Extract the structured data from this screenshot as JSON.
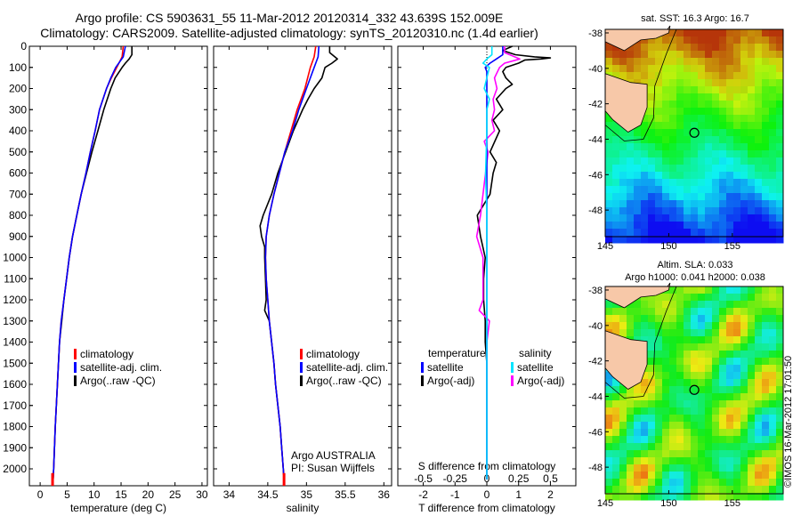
{
  "header": {
    "line1": "Argo profile: CS 5903631_55 11-Mar-2012 20120314_332 43.639S 152.009E",
    "line2": "Climatology: CARS2009. Satellite-adjusted climatology: synTS_20120310.nc (1.4d earlier)"
  },
  "colors": {
    "climatology": "#ff0000",
    "satellite": "#0000ff",
    "argo": "#000000",
    "sal_satellite": "#00e5ff",
    "sal_argo": "#ff00ff"
  },
  "chart_data": [
    {
      "id": "temperature",
      "type": "line",
      "xlabel": "temperature (deg C)",
      "xlim": [
        -2,
        31
      ],
      "xticks": [
        "0",
        "5",
        "10",
        "15",
        "20",
        "25",
        "30"
      ],
      "ylim": [
        0,
        2080
      ],
      "yticks": [
        "0",
        "100",
        "200",
        "300",
        "400",
        "500",
        "600",
        "700",
        "800",
        "900",
        "1000",
        "1100",
        "1200",
        "1300",
        "1400",
        "1500",
        "1600",
        "1700",
        "1800",
        "1900",
        "2000"
      ],
      "legend": [
        "climatology",
        "satellite-adj. clim.",
        "Argo(..raw -QC)"
      ],
      "series": [
        {
          "name": "climatology",
          "depth": [
            0,
            50,
            100,
            150,
            200,
            300,
            400,
            500,
            600,
            700,
            800,
            900,
            1000,
            1100,
            1200,
            1300,
            1400,
            1600,
            1800,
            2000,
            2050
          ],
          "values": [
            15.4,
            15.2,
            14.2,
            13.2,
            12.3,
            11.0,
            10.2,
            9.3,
            8.5,
            7.6,
            6.8,
            6.0,
            5.4,
            4.9,
            4.4,
            3.9,
            3.6,
            3.2,
            2.8,
            2.5,
            2.4
          ]
        },
        {
          "name": "satellite-adj. clim.",
          "depth": [
            0,
            50,
            100,
            150,
            200,
            300,
            400,
            500,
            600,
            700,
            800,
            900,
            1000,
            1100,
            1200,
            1300,
            1400,
            1600,
            1800,
            2000,
            2050
          ],
          "values": [
            15.8,
            15.4,
            14.0,
            13.1,
            12.3,
            11.0,
            10.2,
            9.3,
            8.5,
            7.6,
            6.8,
            6.0,
            5.4,
            4.9,
            4.4,
            3.9,
            3.6,
            3.2,
            2.8,
            2.5,
            2.4
          ]
        },
        {
          "name": "Argo(..raw -QC)",
          "depth": [
            0,
            40,
            60,
            80,
            100,
            150,
            200,
            300,
            400,
            500,
            600,
            700,
            800,
            900,
            1000,
            1100,
            1200,
            1300,
            1400,
            1600,
            1800,
            2000,
            2050
          ],
          "values": [
            17.0,
            17.0,
            16.5,
            15.8,
            15.2,
            13.9,
            13.1,
            11.8,
            10.7,
            9.6,
            8.6,
            7.6,
            6.8,
            6.0,
            5.4,
            4.9,
            4.4,
            4.0,
            3.6,
            3.2,
            2.8,
            2.5,
            2.4
          ]
        }
      ]
    },
    {
      "id": "salinity",
      "type": "line",
      "xlabel": "salinity",
      "xlim": [
        33.8,
        36.1
      ],
      "xticks": [
        "34",
        "34.5",
        "35",
        "35.5",
        "36"
      ],
      "ylim": [
        0,
        2080
      ],
      "legend": [
        "climatology",
        "satellite-adj. clim.",
        "Argo(..raw -QC)"
      ],
      "note": [
        "Argo AUSTRALIA",
        "PI: Susan Wijffels"
      ],
      "series": [
        {
          "name": "climatology",
          "depth": [
            0,
            50,
            100,
            200,
            300,
            400,
            500,
            600,
            700,
            800,
            900,
            1000,
            1100,
            1200,
            1300,
            1400,
            1500,
            1600,
            1700,
            1800,
            1900,
            2000,
            2050
          ],
          "values": [
            35.12,
            35.1,
            35.05,
            34.98,
            34.88,
            34.8,
            34.72,
            34.65,
            34.58,
            34.52,
            34.48,
            34.47,
            34.48,
            34.5,
            34.52,
            34.55,
            34.58,
            34.6,
            34.63,
            34.66,
            34.68,
            34.7,
            34.71
          ]
        },
        {
          "name": "satellite-adj. clim.",
          "depth": [
            0,
            50,
            100,
            200,
            300,
            400,
            500,
            600,
            700,
            800,
            900,
            1000,
            1100,
            1200,
            1300,
            1400,
            1500,
            1600,
            1700,
            1800,
            1900,
            2000,
            2050
          ],
          "values": [
            35.16,
            35.15,
            35.1,
            35.0,
            34.9,
            34.82,
            34.72,
            34.65,
            34.58,
            34.52,
            34.48,
            34.47,
            34.48,
            34.5,
            34.52,
            34.55,
            34.58,
            34.6,
            34.63,
            34.66,
            34.68,
            34.7,
            34.71
          ]
        },
        {
          "name": "Argo(..raw -QC)",
          "depth": [
            0,
            30,
            60,
            80,
            100,
            150,
            200,
            250,
            300,
            400,
            500,
            600,
            700,
            800,
            850,
            900,
            950,
            1000,
            1100,
            1200,
            1250,
            1300,
            1400,
            1500,
            1600,
            1700,
            1800,
            1900,
            2000,
            2050
          ],
          "values": [
            35.3,
            35.3,
            35.4,
            35.33,
            35.24,
            35.2,
            35.1,
            35.02,
            34.95,
            34.83,
            34.73,
            34.63,
            34.55,
            34.44,
            34.4,
            34.42,
            34.46,
            34.46,
            34.47,
            34.48,
            34.46,
            34.52,
            34.55,
            34.58,
            34.6,
            34.63,
            34.66,
            34.68,
            34.7,
            34.71
          ]
        }
      ]
    },
    {
      "id": "difference",
      "type": "line",
      "xlabel": "T difference from climatology",
      "xlabel_top": "S difference from climatology",
      "xlim": [
        -2.8,
        2.8
      ],
      "xticks": [
        "-2",
        "-1",
        "0",
        "1",
        "2"
      ],
      "xticks_s": [
        "-0.5",
        "-0.25",
        "0",
        "0.25",
        "0.5"
      ],
      "ylim": [
        0,
        2080
      ],
      "legend_temperature": {
        "title": "temperature",
        "items": [
          "satellite",
          "Argo(-adj)"
        ]
      },
      "legend_salinity": {
        "title": "salinity",
        "items": [
          "satellite",
          "Argo(-adj)"
        ]
      },
      "series": [
        {
          "name": "temperature satellite",
          "depth": [
            0,
            40,
            60,
            80,
            100,
            120,
            150,
            200,
            300,
            400,
            2050
          ],
          "values": [
            0.5,
            0.5,
            0.3,
            0.1,
            -0.05,
            0,
            0,
            0,
            0,
            0,
            0
          ]
        },
        {
          "name": "temperature Argo(-adj)",
          "depth": [
            0,
            20,
            40,
            50,
            55,
            60,
            65,
            80,
            100,
            120,
            150,
            180,
            200,
            250,
            300,
            350,
            400,
            500,
            550,
            600,
            700,
            800,
            850,
            900,
            1000,
            1100,
            1200,
            1300,
            1400,
            1500,
            1600,
            1700,
            1800,
            1900,
            2000,
            2050
          ],
          "values": [
            0.8,
            0.5,
            0.9,
            1.5,
            2.0,
            1.7,
            1.2,
            1.0,
            0.6,
            0.5,
            0.6,
            0.8,
            0.6,
            0.3,
            0.5,
            0.2,
            0.4,
            0.1,
            0.3,
            0.2,
            0.1,
            -0.3,
            -0.25,
            -0.2,
            -0.05,
            -0.1,
            -0.1,
            -0.05,
            -0.05,
            0,
            0,
            0,
            0,
            0,
            0,
            0
          ]
        },
        {
          "name": "salinity satellite",
          "depth": [
            0,
            40,
            60,
            80,
            100,
            150,
            200,
            250,
            300,
            400,
            600,
            800,
            1000,
            1200,
            1400,
            1600,
            2050
          ],
          "values": [
            0.04,
            0.04,
            0.0,
            -0.03,
            0.02,
            0.0,
            -0.02,
            0.02,
            0.0,
            0.0,
            -0.01,
            0.0,
            0.0,
            0.0,
            0.0,
            0.0,
            0.0
          ]
        },
        {
          "name": "salinity Argo(-adj)",
          "depth": [
            0,
            30,
            60,
            80,
            100,
            150,
            200,
            250,
            300,
            350,
            400,
            450,
            500,
            600,
            700,
            800,
            900,
            1000,
            1100,
            1200,
            1250,
            1300,
            1400,
            1500,
            1600,
            1800,
            2000,
            2050
          ],
          "values": [
            0.14,
            0.14,
            0.26,
            0.14,
            0.1,
            0.06,
            0.08,
            0.05,
            0.06,
            0.04,
            0.06,
            -0.02,
            0.01,
            -0.01,
            -0.03,
            -0.05,
            -0.08,
            -0.03,
            -0.03,
            -0.03,
            -0.06,
            0.02,
            0.0,
            0.0,
            0.0,
            0.0,
            0.0,
            0.0
          ]
        }
      ]
    },
    {
      "id": "sst_map",
      "type": "heatmap",
      "title": "sat. SST: 16.3  Argo: 16.7",
      "xticks": [
        "145",
        "150",
        "155"
      ],
      "yticks": [
        "-38",
        "-40",
        "-42",
        "-44",
        "-46",
        "-48"
      ],
      "xlim": [
        145,
        159
      ],
      "ylim": [
        -49.5,
        -37.8
      ],
      "profile_location": {
        "lon": 152.009,
        "lat": -43.639
      }
    },
    {
      "id": "sla_map",
      "type": "heatmap",
      "title": "Altim. SLA: 0.033",
      "subtitle": "Argo h1000: 0.041  h2000: 0.038",
      "xticks": [
        "145",
        "150",
        "155"
      ],
      "yticks": [
        "-38",
        "-40",
        "-42",
        "-44",
        "-46",
        "-48"
      ],
      "xlim": [
        145,
        159
      ],
      "ylim": [
        -49.5,
        -37.8
      ],
      "profile_location": {
        "lon": 152.009,
        "lat": -43.639
      }
    }
  ],
  "footer": {
    "credit": "©IMOS 16-Mar-2012 17:01:50"
  }
}
